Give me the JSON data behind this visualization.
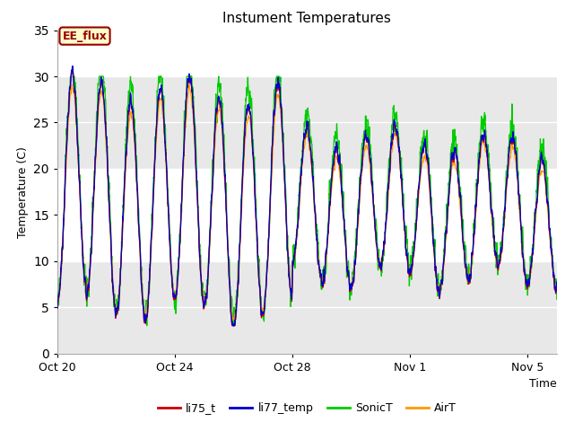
{
  "title": "Instument Temperatures",
  "xlabel": "Time",
  "ylabel": "Temperature (C)",
  "ylim": [
    0,
    35
  ],
  "yticks": [
    0,
    5,
    10,
    15,
    20,
    25,
    30,
    35
  ],
  "legend_labels": [
    "li75_t",
    "li77_temp",
    "SonicT",
    "AirT"
  ],
  "legend_colors": [
    "#cc0000",
    "#0000cc",
    "#00cc00",
    "#ff9900"
  ],
  "annotation_text": "EE_flux",
  "annotation_color": "#990000",
  "annotation_bg": "#ffffcc",
  "plot_bg": "#ffffff",
  "fig_bg": "#ffffff",
  "band_gray": "#e8e8e8",
  "figsize": [
    6.4,
    4.8
  ],
  "dpi": 100,
  "n_days": 17,
  "n_points": 3000,
  "xtick_labels": [
    "Oct 20",
    "Oct 24",
    "Oct 28",
    "Nov 1",
    "Nov 5"
  ],
  "xtick_positions": [
    0.0,
    4.0,
    8.0,
    12.0,
    16.0
  ]
}
